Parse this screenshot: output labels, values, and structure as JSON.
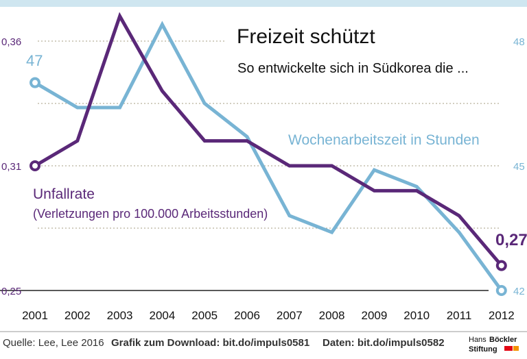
{
  "title": "Freizeit schützt",
  "subtitle": "So entwickelte sich in Südkorea die ...",
  "footer": {
    "source": "Quelle: Lee, Lee 2016",
    "download": "Grafik zum Download: bit.do/impuls0581",
    "data": "Daten: bit.do/impuls0582",
    "logo_line1_light": "Hans",
    "logo_line1_bold": "Böckler",
    "logo_line2": "Stiftung"
  },
  "colors": {
    "purple": "#5a2878",
    "blue": "#78b4d4",
    "top_band": "#cfe6f0",
    "logo_red": "#e30613",
    "logo_orange": "#f39200"
  },
  "chart_data": {
    "type": "line",
    "categories": [
      "2001",
      "2002",
      "2003",
      "2004",
      "2005",
      "2006",
      "2007",
      "2008",
      "2009",
      "2010",
      "2011",
      "2012"
    ],
    "grid": true,
    "left_axis": {
      "ticks": [
        0.25,
        0.31,
        0.36
      ],
      "tick_labels": [
        "0,25",
        "0,31",
        "0,36"
      ]
    },
    "right_axis": {
      "ticks": [
        42,
        45,
        48
      ],
      "tick_labels": [
        "42",
        "45",
        "48"
      ]
    },
    "series": [
      {
        "name": "Unfallrate",
        "name_sub": "(Verletzungen pro 100.000 Arbeitsstunden)",
        "axis": "left",
        "values": [
          0.31,
          0.32,
          0.37,
          0.34,
          0.32,
          0.32,
          0.31,
          0.31,
          0.3,
          0.3,
          0.29,
          0.27
        ],
        "end_label": "0,27"
      },
      {
        "name": "Wochenarbeitszeit in Stunden",
        "axis": "right",
        "values": [
          47,
          46.4,
          46.4,
          48.4,
          46.5,
          45.7,
          43.8,
          43.4,
          44.9,
          44.5,
          43.4,
          42
        ],
        "start_label": "47"
      }
    ]
  }
}
